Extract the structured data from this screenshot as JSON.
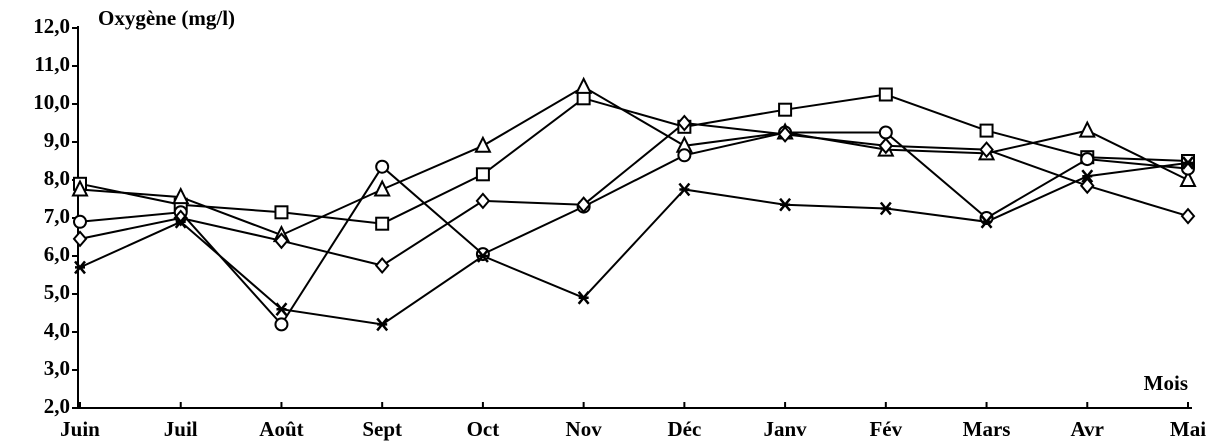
{
  "chart_data": {
    "type": "line",
    "title": "Oxygène (mg/l)",
    "x_label": "Mois",
    "categories": [
      "Juin",
      "Juil",
      "Août",
      "Sept",
      "Oct",
      "Nov",
      "Déc",
      "Janv",
      "Fév",
      "Mars",
      "Avr",
      "Mai"
    ],
    "ylim": [
      2,
      12
    ],
    "yticks": [
      {
        "value": 2,
        "label": "2,0"
      },
      {
        "value": 3,
        "label": "3,0"
      },
      {
        "value": 4,
        "label": "4,0"
      },
      {
        "value": 5,
        "label": "5,0"
      },
      {
        "value": 6,
        "label": "6,0"
      },
      {
        "value": 7,
        "label": "7,0"
      },
      {
        "value": 8,
        "label": "8,0"
      },
      {
        "value": 9,
        "label": "9,0"
      },
      {
        "value": 10,
        "label": "10,0"
      },
      {
        "value": 11,
        "label": "11,0"
      },
      {
        "value": 12,
        "label": "12,0"
      }
    ],
    "series": [
      {
        "marker": "square",
        "color": "#000000",
        "values": [
          7.9,
          7.35,
          7.15,
          6.85,
          8.15,
          10.15,
          9.4,
          9.85,
          10.25,
          9.3,
          8.6,
          8.5
        ]
      },
      {
        "marker": "triangle",
        "color": "#000000",
        "values": [
          7.75,
          7.55,
          6.55,
          7.75,
          8.9,
          10.45,
          8.9,
          9.25,
          8.8,
          8.7,
          9.3,
          8.0
        ]
      },
      {
        "marker": "circle",
        "color": "#000000",
        "values": [
          6.9,
          7.15,
          4.2,
          8.35,
          6.05,
          7.3,
          8.65,
          9.25,
          9.25,
          7.0,
          8.55,
          8.3
        ]
      },
      {
        "marker": "diamond",
        "color": "#000000",
        "values": [
          6.45,
          7.0,
          6.4,
          5.75,
          7.45,
          7.35,
          9.5,
          9.2,
          8.9,
          8.8,
          7.85,
          7.05
        ]
      },
      {
        "marker": "asterisk",
        "color": "#000000",
        "values": [
          5.7,
          6.9,
          4.6,
          4.2,
          6.0,
          4.9,
          7.75,
          7.35,
          7.25,
          6.9,
          8.1,
          8.45
        ]
      }
    ]
  }
}
